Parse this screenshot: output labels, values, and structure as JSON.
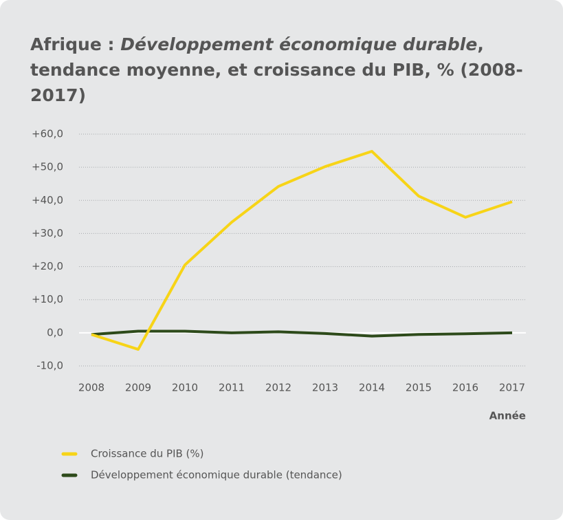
{
  "chart_data": {
    "type": "line",
    "title": [
      "Afrique : ",
      "Développement économique durable",
      ", tendance moyenne, et croissance du PIB, % (2008-2017)"
    ],
    "x_label": "Année",
    "categories": [
      "2008",
      "2009",
      "2010",
      "2011",
      "2012",
      "2013",
      "2014",
      "2015",
      "2016",
      "2017"
    ],
    "series": [
      {
        "name": "Croissance du PIB (%)",
        "color": "#f7d417",
        "values": [
          -0.5,
          -5,
          20.5,
          33.4,
          44.2,
          50.2,
          54.8,
          41.3,
          34.9,
          39.6
        ]
      },
      {
        "name": "Développement économique durable (tendance)",
        "color": "#2d4a1a",
        "values": [
          -0.5,
          0.5,
          0.5,
          0,
          0.3,
          -0.2,
          -1,
          -0.5,
          -0.3,
          0
        ]
      }
    ],
    "ylim": [
      -10,
      60
    ],
    "yticks": [
      {
        "value": -10,
        "label": "-10,0"
      },
      {
        "value": 0,
        "label": "0,0"
      },
      {
        "value": 10,
        "label": "+10,0"
      },
      {
        "value": 20,
        "label": "+20,0"
      },
      {
        "value": 30,
        "label": "+30,0"
      },
      {
        "value": 40,
        "label": "+40,0"
      },
      {
        "value": 50,
        "label": "+50,0"
      },
      {
        "value": 60,
        "label": "+60,0"
      }
    ],
    "grid": true
  }
}
